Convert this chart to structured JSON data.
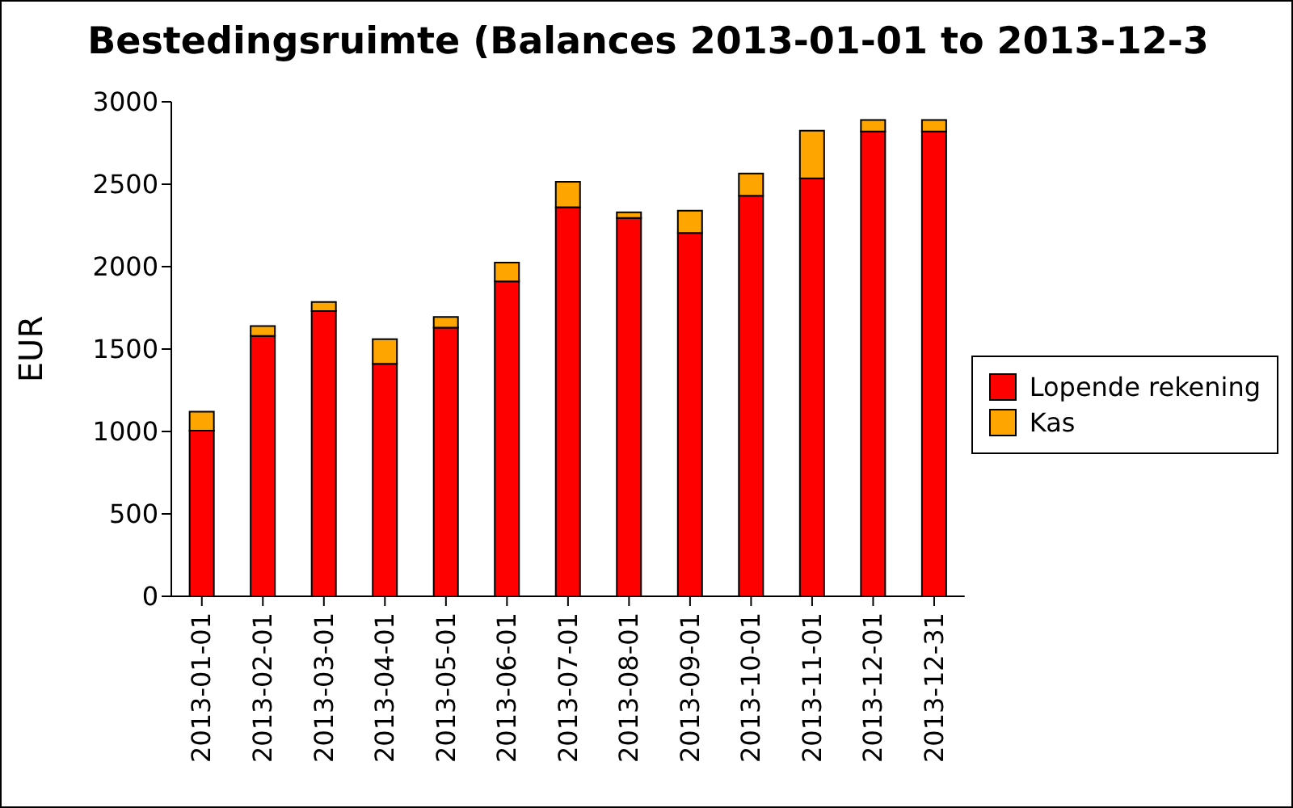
{
  "chart_data": {
    "type": "bar",
    "title": "Bestedingsruimte (Balances 2013-01-01 to 2013-12-3",
    "ylabel": "EUR",
    "categories": [
      "2013-01-01",
      "2013-02-01",
      "2013-03-01",
      "2013-04-01",
      "2013-05-01",
      "2013-06-01",
      "2013-07-01",
      "2013-08-01",
      "2013-09-01",
      "2013-10-01",
      "2013-11-01",
      "2013-12-01",
      "2013-12-31"
    ],
    "series": [
      {
        "name": "Lopende rekening",
        "color": "#ff0000",
        "values": [
          1005,
          1580,
          1730,
          1410,
          1630,
          1910,
          2360,
          2295,
          2205,
          2430,
          2535,
          2820,
          2820
        ]
      },
      {
        "name": "Kas",
        "color": "#ffa500",
        "values": [
          115,
          60,
          55,
          150,
          65,
          115,
          155,
          35,
          135,
          135,
          290,
          70,
          70
        ]
      }
    ],
    "stacked": true,
    "ylim": [
      0,
      3000
    ],
    "yticks": [
      0,
      500,
      1000,
      1500,
      2000,
      2500,
      3000
    ],
    "grid": false,
    "legend": "right"
  }
}
